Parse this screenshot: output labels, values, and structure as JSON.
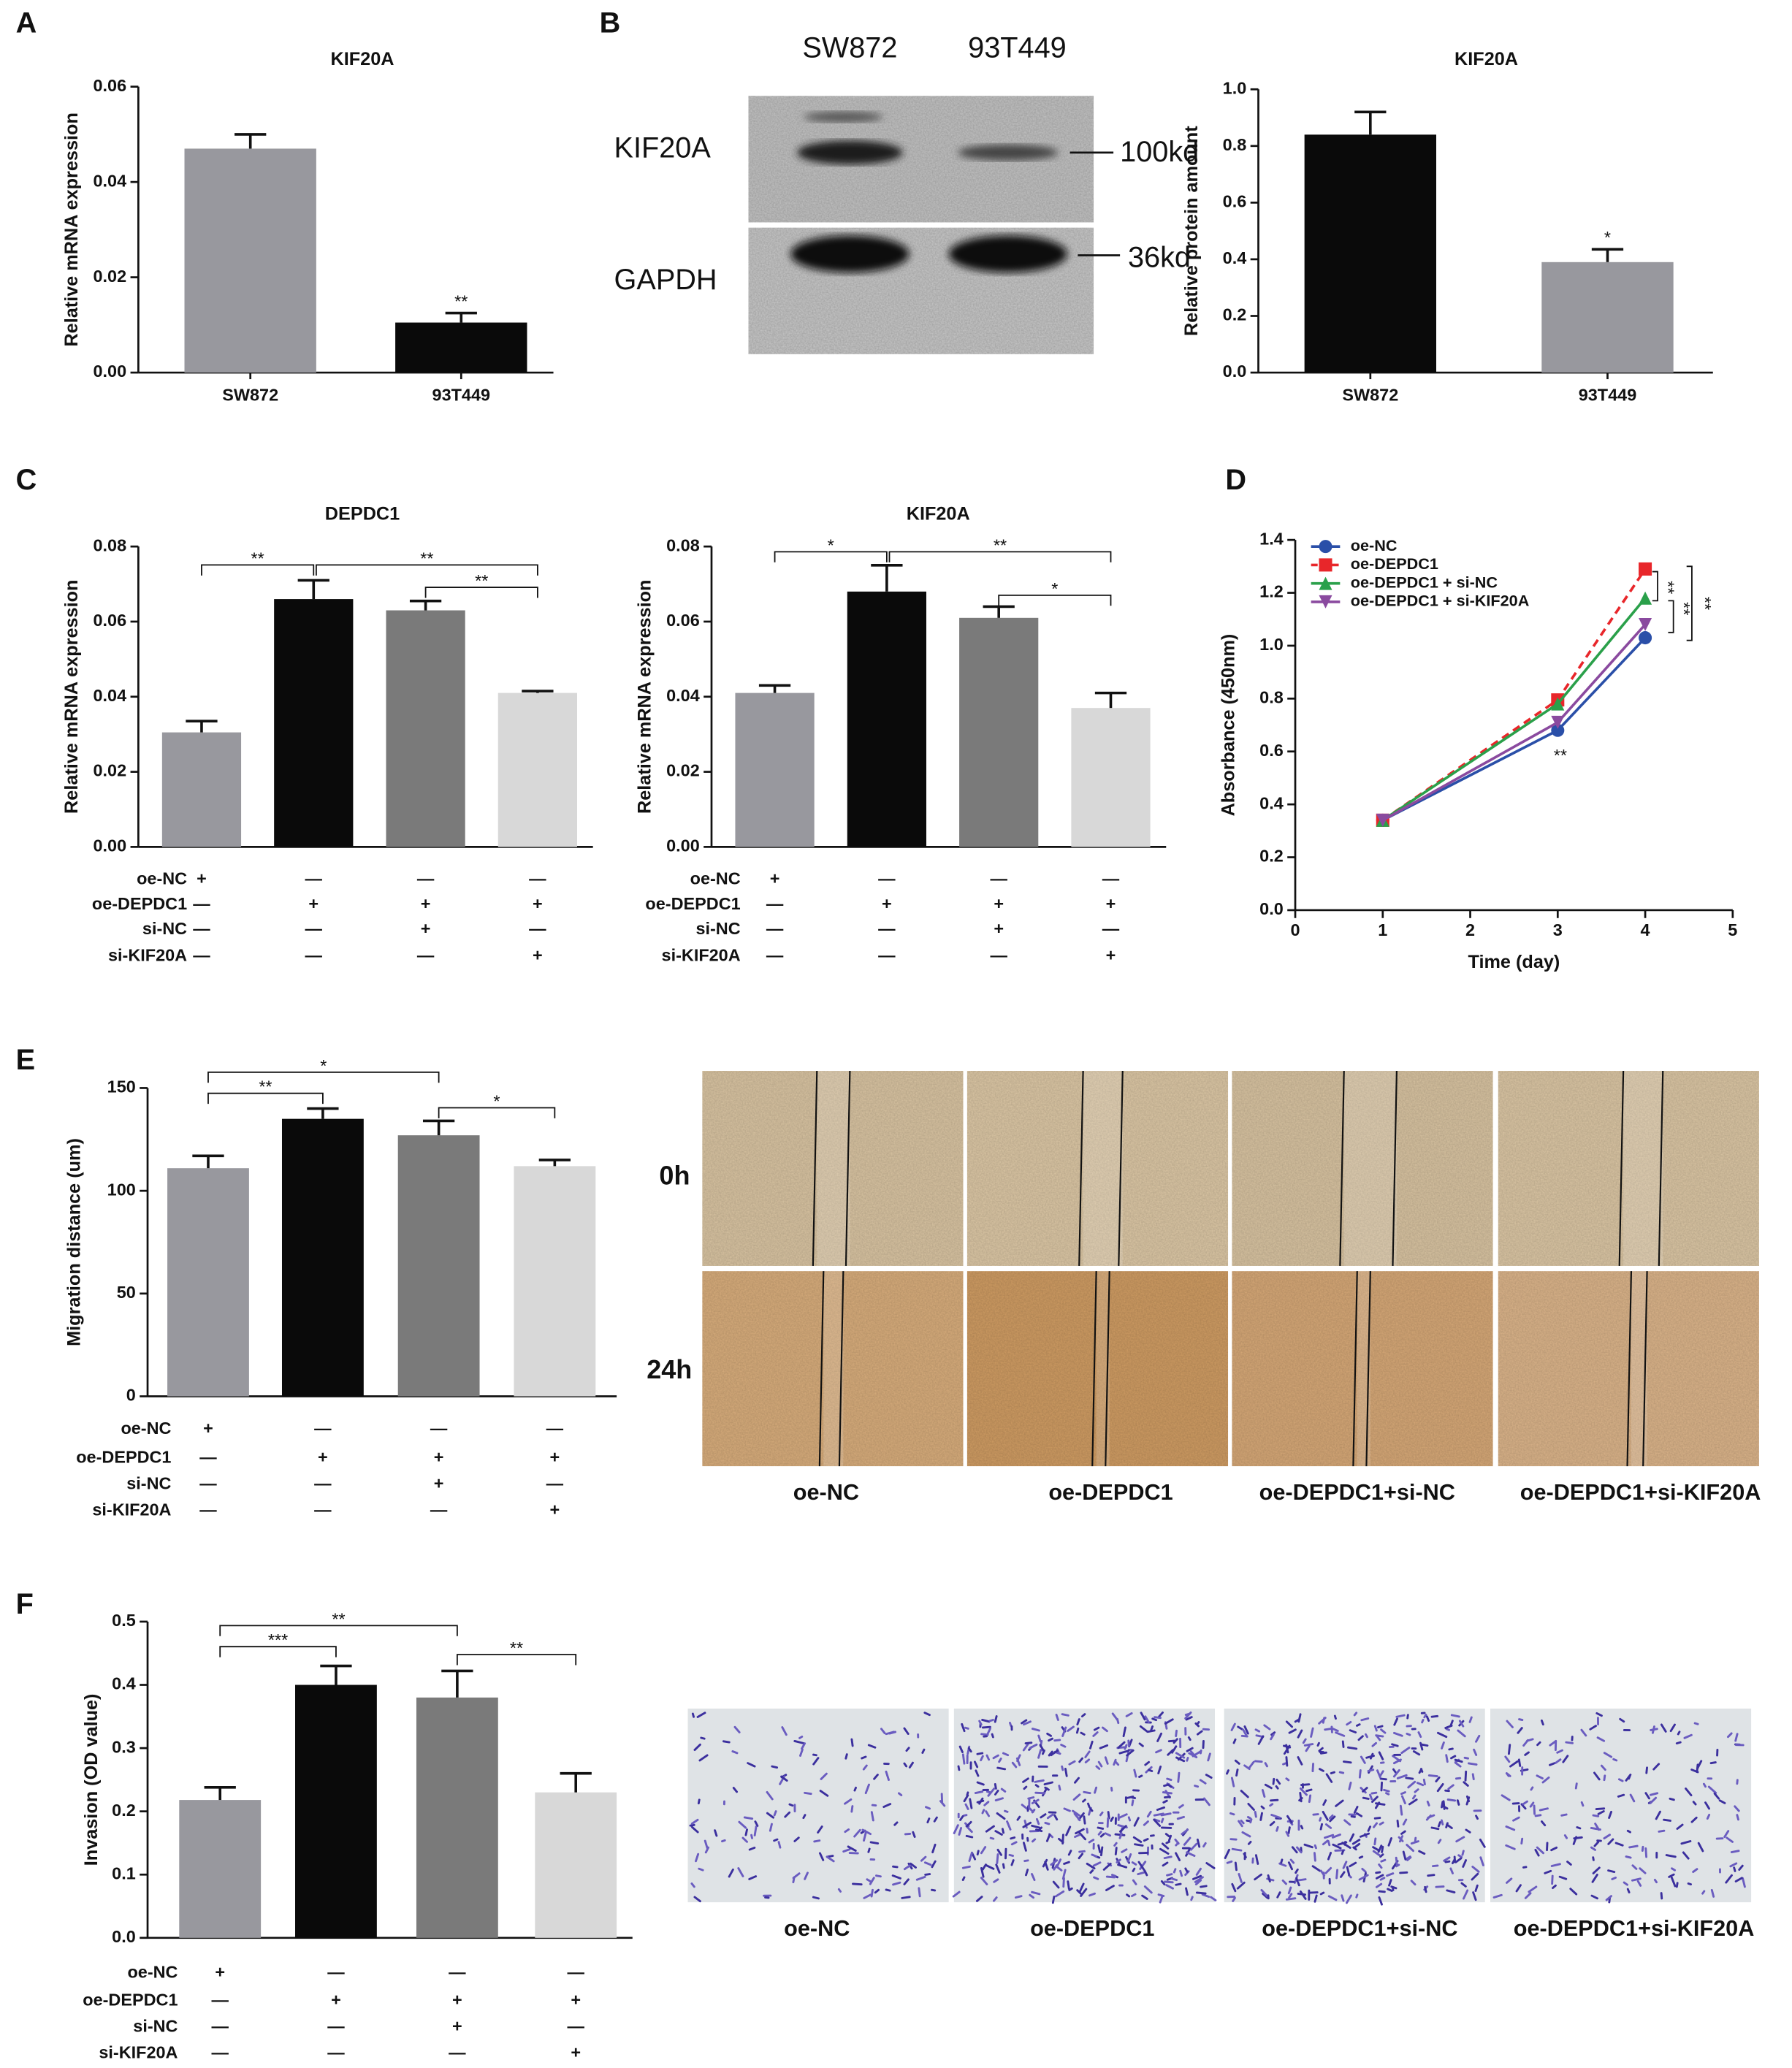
{
  "figure": {
    "panels": [
      "A",
      "B",
      "C",
      "D",
      "E",
      "F"
    ],
    "blot": {
      "lanes": [
        "SW872",
        "93T449"
      ],
      "proteins": [
        "KIF20A",
        "GAPDH"
      ],
      "sizes": [
        "100kd",
        "36kd"
      ]
    },
    "scratch": {
      "rows": [
        "0h",
        "24h"
      ],
      "columns": [
        "oe-NC",
        "oe-DEPDC1",
        "oe-DEPDC1+si-NC",
        "oe-DEPDC1+si-KIF20A"
      ]
    },
    "invasion": {
      "columns": [
        "oe-NC",
        "oe-DEPDC1",
        "oe-DEPDC1+si-NC",
        "oe-DEPDC1+si-KIF20A"
      ]
    }
  },
  "chart_data": [
    {
      "type": "bar",
      "title": "KIF20A",
      "y_label": "Relative mRNA expression",
      "categories": [
        "SW872",
        "93T449"
      ],
      "values": [
        0.047,
        0.0105
      ],
      "errors": [
        0.003,
        0.002
      ],
      "colors": [
        "#98989e",
        "#0a0a0a"
      ],
      "ylim": [
        0,
        0.06
      ],
      "yticks": [
        {
          "value": 0,
          "label": "0.00"
        },
        {
          "value": 0.02,
          "label": "0.02"
        },
        {
          "value": 0.04,
          "label": "0.04"
        },
        {
          "value": 0.06,
          "label": "0.06"
        }
      ],
      "annotations": [
        "**"
      ]
    },
    {
      "type": "bar",
      "title": "KIF20A",
      "y_label": "Relative protein amount",
      "categories": [
        "SW872",
        "93T449"
      ],
      "values": [
        0.84,
        0.39
      ],
      "errors": [
        0.08,
        0.045
      ],
      "colors": [
        "#0a0a0a",
        "#98989e"
      ],
      "ylim": [
        0,
        1
      ],
      "yticks": [
        {
          "value": 0,
          "label": "0.0"
        },
        0.2,
        0.4,
        0.6,
        0.8,
        {
          "value": 1,
          "label": "1.0"
        }
      ],
      "annotations": [
        "*"
      ]
    },
    {
      "type": "bar",
      "title": "DEPDC1",
      "y_label": "Relative mRNA expression",
      "values": [
        0.0305,
        0.066,
        0.063,
        0.041
      ],
      "errors": [
        0.003,
        0.005,
        0.0025,
        0.0005
      ],
      "colors": [
        "#98989e",
        "#0a0a0a",
        "#7a7a7a",
        "#d8d8d8"
      ],
      "ylim": [
        0,
        0.08
      ],
      "yticks": [
        {
          "value": 0,
          "label": "0.00"
        },
        {
          "value": 0.02,
          "label": "0.02"
        },
        {
          "value": 0.04,
          "label": "0.04"
        },
        {
          "value": 0.06,
          "label": "0.06"
        },
        {
          "value": 0.08,
          "label": "0.08"
        }
      ],
      "conditions": {
        "labels": [
          "oe-NC",
          "oe-DEPDC1",
          "si-NC",
          "si-KIF20A"
        ],
        "signs": [
          [
            "+",
            "—",
            "—",
            "—"
          ],
          [
            "—",
            "+",
            "+",
            "+"
          ],
          [
            "—",
            "—",
            "+",
            "—"
          ],
          [
            "—",
            "—",
            "—",
            "+"
          ]
        ]
      },
      "annotations": [
        "**",
        "**",
        "**"
      ]
    },
    {
      "type": "bar",
      "title": "KIF20A",
      "y_label": "Relative mRNA expression",
      "values": [
        0.041,
        0.068,
        0.061,
        0.037
      ],
      "errors": [
        0.002,
        0.007,
        0.003,
        0.004
      ],
      "colors": [
        "#98989e",
        "#0a0a0a",
        "#7a7a7a",
        "#d8d8d8"
      ],
      "ylim": [
        0,
        0.08
      ],
      "yticks": [
        {
          "value": 0,
          "label": "0.00"
        },
        {
          "value": 0.02,
          "label": "0.02"
        },
        {
          "value": 0.04,
          "label": "0.04"
        },
        {
          "value": 0.06,
          "label": "0.06"
        },
        {
          "value": 0.08,
          "label": "0.08"
        }
      ],
      "conditions": {
        "labels": [
          "oe-NC",
          "oe-DEPDC1",
          "si-NC",
          "si-KIF20A"
        ],
        "signs": [
          [
            "+",
            "—",
            "—",
            "—"
          ],
          [
            "—",
            "+",
            "+",
            "+"
          ],
          [
            "—",
            "—",
            "+",
            "—"
          ],
          [
            "—",
            "—",
            "—",
            "+"
          ]
        ]
      },
      "annotations": [
        "*",
        "**",
        "*"
      ]
    },
    {
      "type": "line",
      "x_label": "Time (day)",
      "y_label": "Absorbance (450nm)",
      "x": [
        1,
        3,
        4
      ],
      "xlim": [
        0,
        5
      ],
      "xticks": [
        0,
        1,
        2,
        3,
        4,
        5
      ],
      "ylim": [
        0,
        1.4
      ],
      "yticks": [
        {
          "value": 0,
          "label": "0.0"
        },
        0.2,
        0.4,
        0.6,
        0.8,
        {
          "value": 1,
          "label": "1.0"
        },
        1.2,
        1.4
      ],
      "legend": "top-left",
      "series": [
        {
          "name": "oe-NC",
          "color": "#2a4fa8",
          "marker": "circle",
          "values": [
            0.34,
            0.68,
            1.03
          ]
        },
        {
          "name": "oe-DEPDC1",
          "color": "#e8262a",
          "marker": "square",
          "dashed": true,
          "values": [
            0.34,
            0.795,
            1.29
          ]
        },
        {
          "name": "oe-DEPDC1 + si-NC",
          "color": "#2aa04a",
          "marker": "triangle-up",
          "values": [
            0.34,
            0.78,
            1.18
          ]
        },
        {
          "name": "oe-DEPDC1 + si-KIF20A",
          "color": "#8a4a9f",
          "marker": "triangle-down",
          "values": [
            0.34,
            0.71,
            1.08
          ]
        }
      ],
      "annotations": [
        "**",
        "**",
        "**",
        "**"
      ]
    },
    {
      "type": "bar",
      "y_label": "Migration distance (um)",
      "values": [
        111,
        135,
        127,
        112
      ],
      "errors": [
        6,
        5,
        7,
        3
      ],
      "colors": [
        "#98989e",
        "#0a0a0a",
        "#7a7a7a",
        "#d8d8d8"
      ],
      "ylim": [
        0,
        150
      ],
      "yticks": [
        0,
        50,
        100,
        150
      ],
      "conditions": {
        "labels": [
          "oe-NC",
          "oe-DEPDC1",
          "si-NC",
          "si-KIF20A"
        ],
        "signs": [
          [
            "+",
            "—",
            "—",
            "—"
          ],
          [
            "—",
            "+",
            "+",
            "+"
          ],
          [
            "—",
            "—",
            "+",
            "—"
          ],
          [
            "—",
            "—",
            "—",
            "+"
          ]
        ]
      },
      "annotations": [
        "**",
        "*",
        "*"
      ]
    },
    {
      "type": "bar",
      "y_label": "Invasion (OD value)",
      "values": [
        0.218,
        0.4,
        0.38,
        0.23
      ],
      "errors": [
        0.02,
        0.03,
        0.042,
        0.03
      ],
      "colors": [
        "#98989e",
        "#0a0a0a",
        "#7a7a7a",
        "#d8d8d8"
      ],
      "ylim": [
        0,
        0.5
      ],
      "yticks": [
        {
          "value": 0,
          "label": "0.0"
        },
        0.1,
        0.2,
        0.3,
        0.4,
        0.5
      ],
      "conditions": {
        "labels": [
          "oe-NC",
          "oe-DEPDC1",
          "si-NC",
          "si-KIF20A"
        ],
        "signs": [
          [
            "+",
            "—",
            "—",
            "—"
          ],
          [
            "—",
            "+",
            "+",
            "+"
          ],
          [
            "—",
            "—",
            "+",
            "—"
          ],
          [
            "—",
            "—",
            "—",
            "+"
          ]
        ]
      },
      "annotations": [
        "***",
        "**",
        "**"
      ]
    }
  ]
}
